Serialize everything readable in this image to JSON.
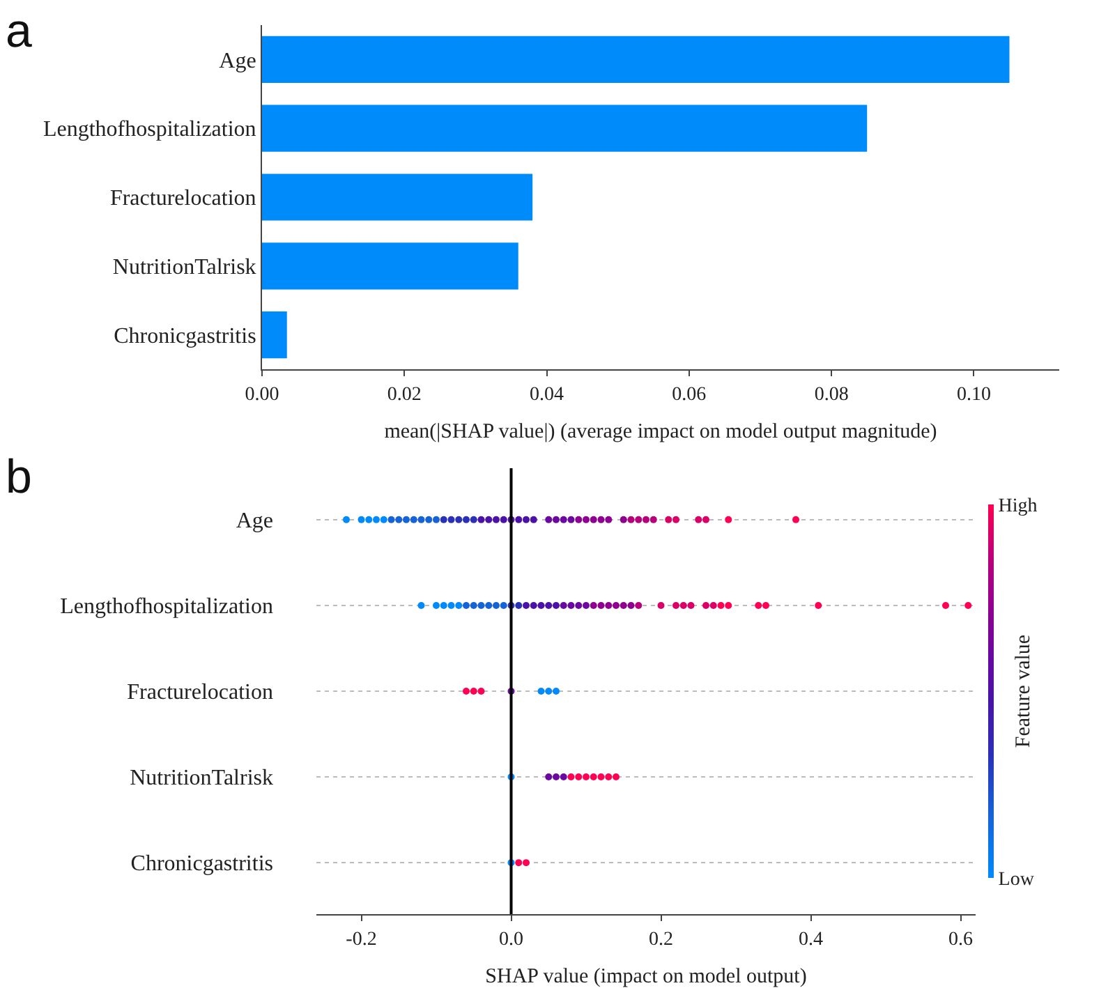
{
  "chart_data": [
    {
      "type": "bar",
      "title": "a",
      "orientation": "horizontal",
      "categories": [
        "Age",
        "Lengthofhospitalization",
        "Fracturelocation",
        "NutritionTalrisk",
        "Chronicgastritis"
      ],
      "values": [
        0.105,
        0.085,
        0.038,
        0.036,
        0.0035
      ],
      "color": "#008bfb",
      "xlabel": "mean(|SHAP value|) (average impact on model output magnitude)",
      "xlim": [
        0,
        0.112
      ],
      "xticks": [
        {
          "value": 0,
          "label": "0.00"
        },
        {
          "value": 0.02,
          "label": "0.02"
        },
        {
          "value": 0.04,
          "label": "0.04"
        },
        {
          "value": 0.06,
          "label": "0.06"
        },
        {
          "value": 0.08,
          "label": "0.08"
        },
        {
          "value": 0.1,
          "label": "0.10"
        }
      ],
      "grid": false,
      "legend": false
    },
    {
      "type": "scatter",
      "title": "b",
      "orientation": "horizontal",
      "categories": [
        "Age",
        "Lengthofhospitalization",
        "Fracturelocation",
        "NutritionTalrisk",
        "Chronicgastritis"
      ],
      "xlabel": "SHAP value (impact on model output)",
      "clabel": "Feature value",
      "clim": [
        0,
        1
      ],
      "cticks": [
        {
          "value": 0,
          "label": "Low"
        },
        {
          "value": 1,
          "label": "High"
        }
      ],
      "xlim": [
        -0.26,
        0.62
      ],
      "xticks": [
        -0.2,
        {
          "value": 0,
          "label": "0.0"
        },
        0.2,
        0.4,
        0.6
      ],
      "grid": "y",
      "legend": false,
      "marker": "circle",
      "ref_lines": [
        {
          "axis": "x",
          "value": 0,
          "color": "#000000"
        }
      ],
      "series": [
        {
          "values": [
            -0.22,
            -0.12,
            -0.06,
            0,
            0
          ],
          "colors": [
            "#008afb",
            "#008afb",
            "#ff0052",
            "#008afb",
            "#008afb"
          ]
        },
        {
          "values": [
            -0.2,
            -0.1,
            -0.05,
            0.05,
            0.01
          ],
          "colors": [
            "#008afb",
            "#008afb",
            "#ff0052",
            "#6a08a0",
            "#ff0052"
          ]
        },
        {
          "values": [
            -0.19,
            -0.09,
            -0.04,
            0.06,
            0.02
          ],
          "colors": [
            "#008afb",
            "#008afb",
            "#ff0052",
            "#6a08a0",
            "#ff0052"
          ]
        },
        {
          "values": [
            -0.18,
            -0.08,
            0,
            0.07,
            null
          ],
          "colors": [
            "#008afb",
            "#008afb",
            "#6a08a0",
            "#6a08a0",
            null
          ]
        },
        {
          "values": [
            -0.17,
            -0.07,
            0.04,
            0.08,
            null
          ],
          "colors": [
            "#008afb",
            "#008afb",
            "#008afb",
            "#ff0052",
            null
          ]
        },
        {
          "values": [
            -0.16,
            -0.06,
            0.05,
            0.09,
            null
          ],
          "colors": [
            "#1563d6",
            "#1563d6",
            "#008afb",
            "#ff0052",
            null
          ]
        },
        {
          "values": [
            -0.15,
            -0.05,
            0.06,
            0.1,
            null
          ],
          "colors": [
            "#1563d6",
            "#1563d6",
            "#008afb",
            "#ff0052",
            null
          ]
        },
        {
          "values": [
            -0.14,
            -0.04,
            null,
            0.11,
            null
          ],
          "colors": [
            "#1563d6",
            "#1563d6",
            null,
            "#ff0052",
            null
          ]
        },
        {
          "values": [
            -0.13,
            -0.03,
            null,
            0.12,
            null
          ],
          "colors": [
            "#1563d6",
            "#1563d6",
            null,
            "#ff0052",
            null
          ]
        },
        {
          "values": [
            -0.12,
            -0.02,
            null,
            0.13,
            null
          ],
          "colors": [
            "#1563d6",
            "#1563d6",
            null,
            "#ff0052",
            null
          ]
        },
        {
          "values": [
            -0.11,
            -0.01,
            null,
            0.14,
            null
          ],
          "colors": [
            "#1563d6",
            "#1563d6",
            null,
            "#ff0052",
            null
          ]
        },
        {
          "values": [
            -0.1,
            0,
            null,
            null,
            null
          ],
          "colors": [
            "#1563d6",
            "#2a30b8",
            null,
            null,
            null
          ]
        },
        {
          "values": [
            -0.09,
            0.01,
            null,
            null,
            null
          ],
          "colors": [
            "#2a30b8",
            "#2a30b8",
            null,
            null,
            null
          ]
        },
        {
          "values": [
            -0.08,
            0.02,
            null,
            null,
            null
          ],
          "colors": [
            "#2a30b8",
            "#4a12a6",
            null,
            null,
            null
          ]
        },
        {
          "values": [
            -0.07,
            0.03,
            null,
            null,
            null
          ],
          "colors": [
            "#2a30b8",
            "#4a12a6",
            null,
            null,
            null
          ]
        },
        {
          "values": [
            -0.06,
            0.04,
            null,
            null,
            null
          ],
          "colors": [
            "#2a30b8",
            "#4a12a6",
            null,
            null,
            null
          ]
        },
        {
          "values": [
            -0.05,
            0.05,
            null,
            null,
            null
          ],
          "colors": [
            "#2a30b8",
            "#4a12a6",
            null,
            null,
            null
          ]
        },
        {
          "values": [
            -0.04,
            0.06,
            null,
            null,
            null
          ],
          "colors": [
            "#4a12a6",
            "#4a12a6",
            null,
            null,
            null
          ]
        },
        {
          "values": [
            -0.03,
            0.07,
            null,
            null,
            null
          ],
          "colors": [
            "#4a12a6",
            "#6a08a0",
            null,
            null,
            null
          ]
        },
        {
          "values": [
            -0.02,
            0.08,
            null,
            null,
            null
          ],
          "colors": [
            "#4a12a6",
            "#6a08a0",
            null,
            null,
            null
          ]
        },
        {
          "values": [
            -0.01,
            0.09,
            null,
            null,
            null
          ],
          "colors": [
            "#4a12a6",
            "#6a08a0",
            null,
            null,
            null
          ]
        },
        {
          "values": [
            0,
            0.1,
            null,
            null,
            null
          ],
          "colors": [
            "#4a12a6",
            "#6a08a0",
            null,
            null,
            null
          ]
        },
        {
          "values": [
            0.01,
            0.11,
            null,
            null,
            null
          ],
          "colors": [
            "#4a12a6",
            "#900090",
            null,
            null,
            null
          ]
        },
        {
          "values": [
            0.02,
            0.12,
            null,
            null,
            null
          ],
          "colors": [
            "#4a12a6",
            "#900090",
            null,
            null,
            null
          ]
        },
        {
          "values": [
            0.03,
            0.13,
            null,
            null,
            null
          ],
          "colors": [
            "#4a12a6",
            "#900090",
            null,
            null,
            null
          ]
        },
        {
          "values": [
            0.05,
            0.14,
            null,
            null,
            null
          ],
          "colors": [
            "#6a08a0",
            "#900090",
            null,
            null,
            null
          ]
        },
        {
          "values": [
            0.06,
            0.15,
            null,
            null,
            null
          ],
          "colors": [
            "#6a08a0",
            "#900090",
            null,
            null,
            null
          ]
        },
        {
          "values": [
            0.07,
            0.16,
            null,
            null,
            null
          ],
          "colors": [
            "#6a08a0",
            "#900090",
            null,
            null,
            null
          ]
        },
        {
          "values": [
            0.08,
            0.17,
            null,
            null,
            null
          ],
          "colors": [
            "#6a08a0",
            "#b8007a",
            null,
            null,
            null
          ]
        },
        {
          "values": [
            0.09,
            0.2,
            null,
            null,
            null
          ],
          "colors": [
            "#900090",
            "#dc0066",
            null,
            null,
            null
          ]
        },
        {
          "values": [
            0.1,
            0.22,
            null,
            null,
            null
          ],
          "colors": [
            "#900090",
            "#dc0066",
            null,
            null,
            null
          ]
        },
        {
          "values": [
            0.11,
            0.23,
            null,
            null,
            null
          ],
          "colors": [
            "#900090",
            "#dc0066",
            null,
            null,
            null
          ]
        },
        {
          "values": [
            0.12,
            0.24,
            null,
            null,
            null
          ],
          "colors": [
            "#900090",
            "#dc0066",
            null,
            null,
            null
          ]
        },
        {
          "values": [
            0.13,
            0.26,
            null,
            null,
            null
          ],
          "colors": [
            "#900090",
            "#dc0066",
            null,
            null,
            null
          ]
        },
        {
          "values": [
            0.15,
            0.27,
            null,
            null,
            null
          ],
          "colors": [
            "#900090",
            "#dc0066",
            null,
            null,
            null
          ]
        },
        {
          "values": [
            0.16,
            0.28,
            null,
            null,
            null
          ],
          "colors": [
            "#b8007a",
            "#ff0052",
            null,
            null,
            null
          ]
        },
        {
          "values": [
            0.17,
            0.29,
            null,
            null,
            null
          ],
          "colors": [
            "#b8007a",
            "#ff0052",
            null,
            null,
            null
          ]
        },
        {
          "values": [
            0.18,
            0.33,
            null,
            null,
            null
          ],
          "colors": [
            "#b8007a",
            "#ff0052",
            null,
            null,
            null
          ]
        },
        {
          "values": [
            0.19,
            0.34,
            null,
            null,
            null
          ],
          "colors": [
            "#b8007a",
            "#ff0052",
            null,
            null,
            null
          ]
        },
        {
          "values": [
            0.21,
            0.41,
            null,
            null,
            null
          ],
          "colors": [
            "#dc0066",
            "#ff0052",
            null,
            null,
            null
          ]
        },
        {
          "values": [
            0.22,
            0.58,
            null,
            null,
            null
          ],
          "colors": [
            "#dc0066",
            "#ff0052",
            null,
            null,
            null
          ]
        },
        {
          "values": [
            0.25,
            0.61,
            null,
            null,
            null
          ],
          "colors": [
            "#dc0066",
            "#ff0052",
            null,
            null,
            null
          ]
        },
        {
          "values": [
            0.26,
            null,
            null,
            null,
            null
          ],
          "colors": [
            "#dc0066",
            null,
            null,
            null,
            null
          ]
        },
        {
          "values": [
            0.29,
            null,
            null,
            null,
            null
          ],
          "colors": [
            "#ff0052",
            null,
            null,
            null,
            null
          ]
        },
        {
          "values": [
            0.38,
            null,
            null,
            null,
            null
          ],
          "colors": [
            "#ff0052",
            null,
            null,
            null,
            null
          ]
        }
      ]
    }
  ]
}
